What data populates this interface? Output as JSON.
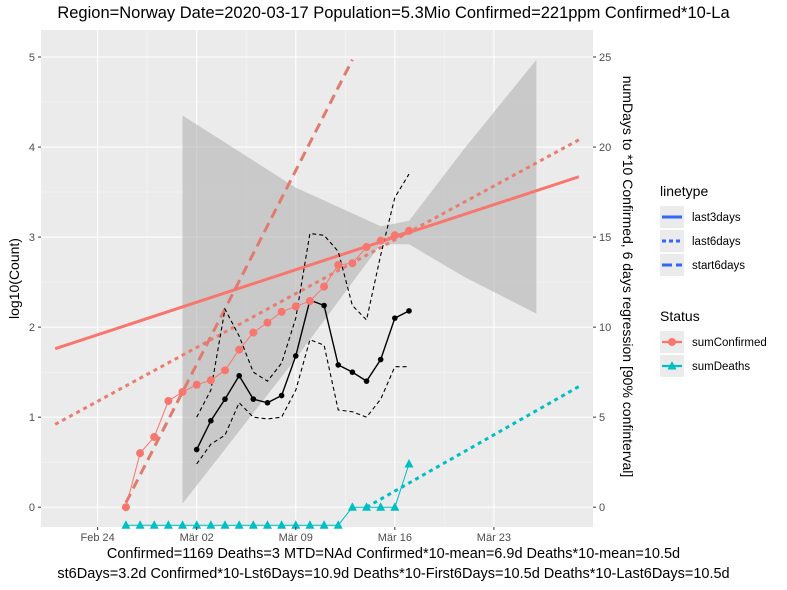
{
  "chart_data": {
    "type": "line",
    "title": "Region=Norway Date=2020-03-17  Population=5.3Mio Confirmed=221ppm  Confirmed*10-La",
    "footer_line1": "Confirmed=1169 Deaths=3  MTD=NAd   Confirmed*10-mean=6.9d  Deaths*10-mean=10.5d",
    "footer_line2": "st6Days=3.2d  Confirmed*10-Lst6Days=10.9d    Deaths*10-First6Days=10.5d  Deaths*10-Last6Days=10.5d",
    "ylabel": "log10(Count)",
    "ylabel_right": "numDays to *10 Confirmed, 6 days regression [90% confinterval]",
    "x_domain": [
      "2020-02-20",
      "2020-03-30"
    ],
    "x_ticks": [
      {
        "date": "2020-02-24",
        "label": "Feb 24"
      },
      {
        "date": "2020-03-02",
        "label": "Mär 02"
      },
      {
        "date": "2020-03-09",
        "label": "Mär 09"
      },
      {
        "date": "2020-03-16",
        "label": "Mär 16"
      },
      {
        "date": "2020-03-23",
        "label": "Mär 23"
      }
    ],
    "ylim": [
      -0.22,
      5.3
    ],
    "y_ticks": [
      0,
      1,
      2,
      3,
      4,
      5
    ],
    "ylim_right": [
      -1.1,
      26.5
    ],
    "y_ticks_right": [
      0,
      5,
      10,
      15,
      20,
      25
    ],
    "grid": true,
    "background": "#ebebeb",
    "colors": {
      "confirmed": "#f8766d",
      "deaths": "#00bfc4",
      "ribbon": "#b3b3b3",
      "days": "#000000"
    },
    "series": [
      {
        "name": "sumConfirmed",
        "axis": "left",
        "x": [
          "2020-02-26",
          "2020-02-27",
          "2020-02-28",
          "2020-02-29",
          "2020-03-01",
          "2020-03-02",
          "2020-03-03",
          "2020-03-04",
          "2020-03-05",
          "2020-03-06",
          "2020-03-07",
          "2020-03-08",
          "2020-03-09",
          "2020-03-10",
          "2020-03-11",
          "2020-03-12",
          "2020-03-13",
          "2020-03-14",
          "2020-03-15",
          "2020-03-16",
          "2020-03-17"
        ],
        "values": [
          0.0,
          0.6,
          0.78,
          1.18,
          1.28,
          1.36,
          1.41,
          1.52,
          1.75,
          1.94,
          2.05,
          2.17,
          2.23,
          2.29,
          2.45,
          2.69,
          2.71,
          2.89,
          2.96,
          3.02,
          3.07
        ]
      },
      {
        "name": "sumDeaths",
        "axis": "left",
        "x": [
          "2020-02-26",
          "2020-02-27",
          "2020-02-28",
          "2020-02-29",
          "2020-03-01",
          "2020-03-02",
          "2020-03-03",
          "2020-03-04",
          "2020-03-05",
          "2020-03-06",
          "2020-03-07",
          "2020-03-08",
          "2020-03-09",
          "2020-03-10",
          "2020-03-11",
          "2020-03-12",
          "2020-03-13",
          "2020-03-14",
          "2020-03-15",
          "2020-03-16",
          "2020-03-17"
        ],
        "values": [
          -0.2,
          -0.2,
          -0.2,
          -0.2,
          -0.2,
          -0.2,
          -0.2,
          -0.2,
          -0.2,
          -0.2,
          -0.2,
          -0.2,
          -0.2,
          -0.2,
          -0.2,
          -0.2,
          0.0,
          0.0,
          0.0,
          0.0,
          0.48
        ]
      },
      {
        "name": "numDays to *10 Confirmed",
        "axis": "right",
        "x": [
          "2020-03-02",
          "2020-03-03",
          "2020-03-04",
          "2020-03-05",
          "2020-03-06",
          "2020-03-07",
          "2020-03-08",
          "2020-03-09",
          "2020-03-10",
          "2020-03-11",
          "2020-03-12",
          "2020-03-13",
          "2020-03-14",
          "2020-03-15",
          "2020-03-16",
          "2020-03-17"
        ],
        "values": [
          3.2,
          4.8,
          6.0,
          7.3,
          6.0,
          5.8,
          6.2,
          8.4,
          11.5,
          11.2,
          7.9,
          7.5,
          7.0,
          8.2,
          10.5,
          10.9
        ],
        "ci_low": [
          2.4,
          3.5,
          4.0,
          5.8,
          5.0,
          4.9,
          5.0,
          6.5,
          9.3,
          9.0,
          5.4,
          5.3,
          5.0,
          6.0,
          7.8,
          7.8
        ],
        "ci_high": [
          5.0,
          6.5,
          11.0,
          9.5,
          7.5,
          7.0,
          8.0,
          10.5,
          15.2,
          15.1,
          14.2,
          11.2,
          10.4,
          14.0,
          17.2,
          18.5
        ]
      }
    ],
    "regression_lines": [
      {
        "name": "last3days",
        "color": "#f8766d",
        "from": {
          "x": "2020-02-21",
          "y": 1.76
        },
        "to": {
          "x": "2020-03-29",
          "y": 3.67
        }
      },
      {
        "name": "last6days",
        "color": "#e87e70",
        "from": {
          "x": "2020-02-21",
          "y": 0.92
        },
        "to": {
          "x": "2020-03-29",
          "y": 4.08
        }
      },
      {
        "name": "start6days",
        "color": "#e07b6f",
        "from": {
          "x": "2020-02-26",
          "y": 0.05
        },
        "to": {
          "x": "2020-03-13",
          "y": 4.97
        }
      },
      {
        "name": "deaths-last6days",
        "color": "#00bfc4",
        "from": {
          "x": "2020-03-14",
          "y": 0.0
        },
        "to": {
          "x": "2020-03-29",
          "y": 1.34
        }
      }
    ],
    "confidence_band": {
      "x": [
        "2020-03-01",
        "2020-03-09",
        "2020-03-15",
        "2020-03-17",
        "2020-03-21",
        "2020-03-26"
      ],
      "low": [
        0.04,
        1.65,
        2.92,
        2.92,
        2.55,
        2.15
      ],
      "high": [
        4.35,
        3.55,
        3.12,
        3.18,
        4.0,
        4.97
      ]
    },
    "legend": {
      "position": "right",
      "linetype_title": "linetype",
      "linetype_items": [
        "last3days",
        "last6days",
        "start6days"
      ],
      "status_title": "Status",
      "status_items": [
        "sumConfirmed",
        "sumDeaths"
      ]
    }
  }
}
